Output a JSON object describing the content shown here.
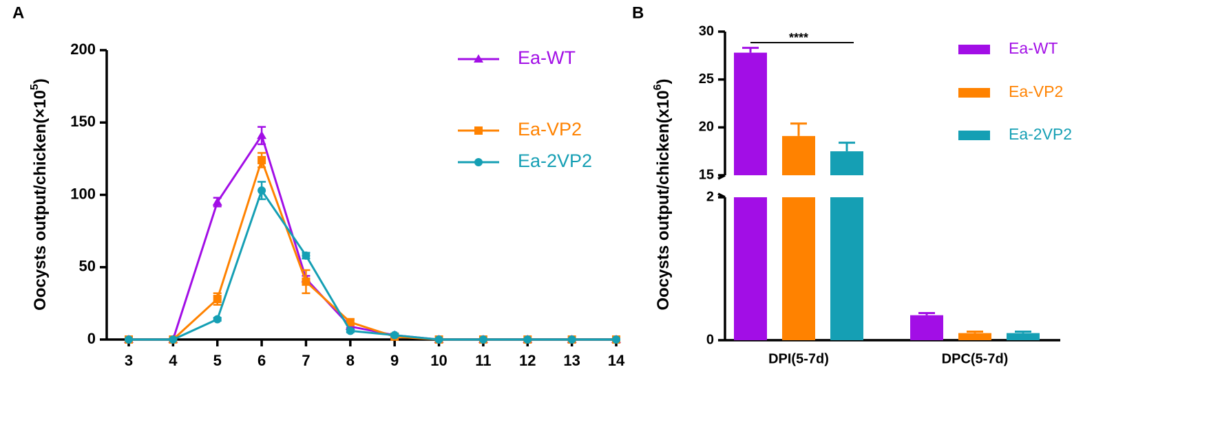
{
  "chart_data": [
    {
      "type": "line",
      "panel_label": "A",
      "y_label": "Oocysts output/chicken(×10",
      "y_label_superscript": "5",
      "y_label_suffix": ")",
      "x": [
        3,
        4,
        5,
        6,
        7,
        8,
        9,
        10,
        11,
        12,
        13,
        14
      ],
      "xlim": [
        3,
        14
      ],
      "xticks": [
        3,
        4,
        5,
        6,
        7,
        8,
        9,
        10,
        11,
        12,
        13,
        14
      ],
      "ylim": [
        0,
        200
      ],
      "yticks": [
        0,
        50,
        100,
        150,
        200
      ],
      "series": [
        {
          "name": "Ea-WT",
          "color": "#a20ee6",
          "marker": "triangle",
          "values": [
            0,
            0,
            95,
            141,
            42,
            9,
            3,
            0,
            0,
            0,
            0,
            0
          ],
          "errors": [
            0,
            0,
            3,
            6,
            2,
            1,
            1,
            0,
            0,
            0,
            0,
            0
          ]
        },
        {
          "name": "Ea-VP2",
          "color": "#ff8200",
          "marker": "square",
          "values": [
            0,
            0,
            28,
            124,
            40,
            12,
            2,
            0,
            0,
            0,
            0,
            0
          ],
          "errors": [
            0,
            0,
            4,
            5,
            8,
            2,
            1,
            0,
            0,
            0,
            0,
            0
          ]
        },
        {
          "name": "Ea-2VP2",
          "color": "#159fb4",
          "marker": "circle",
          "values": [
            0,
            0,
            14,
            103,
            58,
            6,
            3,
            0,
            0,
            0,
            0,
            0
          ],
          "errors": [
            0,
            0,
            1,
            6,
            2,
            1,
            1,
            0,
            0,
            0,
            0,
            0
          ]
        }
      ]
    },
    {
      "type": "broken-bar",
      "panel_label": "B",
      "y_label": "Oocysts output/chicken(x10",
      "y_label_superscript": "6",
      "y_label_suffix": ")",
      "categories": [
        "DPI(5-7d)",
        "DPC(5-7d)"
      ],
      "ylim_segments": [
        [
          0,
          2
        ],
        [
          15,
          30
        ]
      ],
      "yticks": [
        0,
        2,
        15,
        20,
        25,
        30
      ],
      "annotation": "****",
      "series": [
        {
          "name": "Ea-WT",
          "color": "#a20ee6",
          "values": [
            27.8,
            0.35
          ],
          "errors": [
            0.5,
            0.03
          ]
        },
        {
          "name": "Ea-VP2",
          "color": "#ff8200",
          "values": [
            19.1,
            0.1
          ],
          "errors": [
            1.3,
            0.02
          ]
        },
        {
          "name": "Ea-2VP2",
          "color": "#159fb4",
          "values": [
            17.5,
            0.1
          ],
          "errors": [
            0.9,
            0.02
          ]
        }
      ]
    }
  ]
}
